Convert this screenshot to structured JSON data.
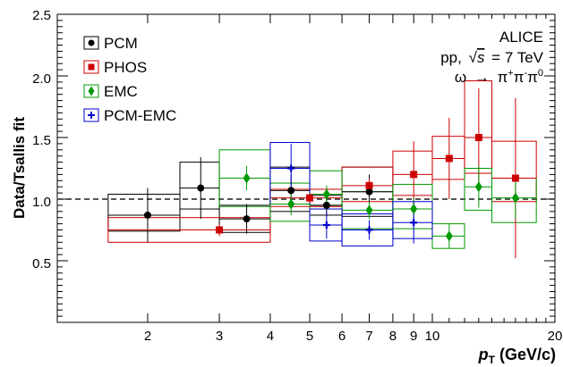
{
  "chart_data": {
    "type": "scatter",
    "xlabel": "p_T (GeV/c)",
    "xlabel_main": "p",
    "xlabel_sub": "T",
    "xlabel_unit": "(GeV/c)",
    "ylabel": "Data/Tsallis fit",
    "x_scale": "log",
    "xlim": [
      1.2,
      20
    ],
    "ylim": [
      0.0,
      2.5
    ],
    "x_tick_labels": [
      "2",
      "3",
      "4",
      "5",
      "6",
      "7",
      "8",
      "9",
      "10",
      "20"
    ],
    "y_tick_labels": [
      "0.5",
      "1.0",
      "1.5",
      "2.0",
      "2.5"
    ],
    "reference_line": 1.0,
    "legend_position": "top-left",
    "annotations": {
      "collab": "ALICE",
      "system_prefix": "pp,",
      "sqrt": "√",
      "s": "s",
      "energy": "= 7 TeV",
      "decay_omega": "ω",
      "decay_arrow": "→",
      "decay_pi": "π",
      "sup_plus": "+",
      "sup_minus": "-",
      "sup_zero": "0"
    },
    "series": [
      {
        "name": "PCM",
        "color": "#000000",
        "marker": "circle",
        "points": [
          {
            "x": 2.0,
            "y": 0.87,
            "xlo": 1.6,
            "xhi": 2.4,
            "elo": 0.22,
            "ehi": 0.22,
            "slo": 0.13,
            "shi": 0.17
          },
          {
            "x": 2.7,
            "y": 1.09,
            "xlo": 2.4,
            "xhi": 3.0,
            "elo": 0.25,
            "ehi": 0.25,
            "slo": 0.17,
            "shi": 0.21
          },
          {
            "x": 3.5,
            "y": 0.84,
            "xlo": 3.0,
            "xhi": 4.0,
            "elo": 0.12,
            "ehi": 0.12,
            "slo": 0.11,
            "shi": 0.11
          },
          {
            "x": 4.5,
            "y": 1.07,
            "xlo": 4.0,
            "xhi": 5.0,
            "elo": 0.13,
            "ehi": 0.13,
            "slo": 0.17,
            "shi": 0.19
          },
          {
            "x": 5.5,
            "y": 0.95,
            "xlo": 5.0,
            "xhi": 6.0,
            "elo": 0.09,
            "ehi": 0.09,
            "slo": 0.08,
            "shi": 0.08
          },
          {
            "x": 7.0,
            "y": 1.06,
            "xlo": 6.0,
            "xhi": 8.0,
            "elo": 0.14,
            "ehi": 0.14,
            "slo": 0.2,
            "shi": 0.2
          }
        ]
      },
      {
        "name": "PHOS",
        "color": "#cc0000",
        "marker": "square",
        "points": [
          {
            "x": 3.0,
            "y": 0.75,
            "xlo": 1.6,
            "xhi": 4.0,
            "elo": 0.05,
            "ehi": 0.05,
            "slo": 0.1,
            "shi": 0.1
          },
          {
            "x": 5.0,
            "y": 1.01,
            "xlo": 4.0,
            "xhi": 6.0,
            "elo": 0.04,
            "ehi": 0.04,
            "slo": 0.07,
            "shi": 0.07
          },
          {
            "x": 7.0,
            "y": 1.11,
            "xlo": 6.0,
            "xhi": 8.0,
            "elo": 0.06,
            "ehi": 0.06,
            "slo": 0.13,
            "shi": 0.15
          },
          {
            "x": 9.0,
            "y": 1.2,
            "xlo": 8.0,
            "xhi": 10.0,
            "elo": 0.27,
            "ehi": 0.27,
            "slo": 0.17,
            "shi": 0.19
          },
          {
            "x": 11.0,
            "y": 1.33,
            "xlo": 10.0,
            "xhi": 12.0,
            "elo": 0.33,
            "ehi": 0.33,
            "slo": 0.17,
            "shi": 0.18
          },
          {
            "x": 13.0,
            "y": 1.5,
            "xlo": 12.0,
            "xhi": 14.0,
            "elo": 0.4,
            "ehi": 0.4,
            "slo": 0.29,
            "shi": 0.46
          },
          {
            "x": 16.0,
            "y": 1.17,
            "xlo": 14.0,
            "xhi": 18.0,
            "elo": 0.65,
            "ehi": 0.65,
            "slo": 0.19,
            "shi": 0.3
          }
        ]
      },
      {
        "name": "EMC",
        "color": "#009900",
        "marker": "diamond",
        "points": [
          {
            "x": 3.5,
            "y": 1.17,
            "xlo": 3.0,
            "xhi": 4.0,
            "elo": 0.1,
            "ehi": 0.1,
            "slo": 0.23,
            "shi": 0.23
          },
          {
            "x": 4.5,
            "y": 0.96,
            "xlo": 4.0,
            "xhi": 5.0,
            "elo": 0.09,
            "ehi": 0.09,
            "slo": 0.14,
            "shi": 0.17
          },
          {
            "x": 5.5,
            "y": 1.04,
            "xlo": 5.0,
            "xhi": 6.0,
            "elo": 0.07,
            "ehi": 0.07,
            "slo": 0.09,
            "shi": 0.19
          },
          {
            "x": 7.0,
            "y": 0.91,
            "xlo": 6.0,
            "xhi": 8.0,
            "elo": 0.07,
            "ehi": 0.07,
            "slo": 0.15,
            "shi": 0.15
          },
          {
            "x": 9.0,
            "y": 0.92,
            "xlo": 8.0,
            "xhi": 10.0,
            "elo": 0.09,
            "ehi": 0.09,
            "slo": 0.16,
            "shi": 0.2
          },
          {
            "x": 11.0,
            "y": 0.7,
            "xlo": 10.0,
            "xhi": 12.0,
            "elo": 0.1,
            "ehi": 0.1,
            "slo": 0.1,
            "shi": 0.1
          },
          {
            "x": 13.0,
            "y": 1.1,
            "xlo": 12.0,
            "xhi": 14.0,
            "elo": 0.17,
            "ehi": 0.17,
            "slo": 0.19,
            "shi": 0.15
          },
          {
            "x": 16.0,
            "y": 1.01,
            "xlo": 14.0,
            "xhi": 18.0,
            "elo": 0.17,
            "ehi": 0.17,
            "slo": 0.2,
            "shi": 0.16
          }
        ]
      },
      {
        "name": "PCM-EMC",
        "color": "#0000cc",
        "marker": "cross",
        "points": [
          {
            "x": 4.5,
            "y": 1.25,
            "xlo": 4.0,
            "xhi": 5.0,
            "elo": 0.2,
            "ehi": 0.2,
            "slo": 0.29,
            "shi": 0.21
          },
          {
            "x": 5.5,
            "y": 0.79,
            "xlo": 5.0,
            "xhi": 6.0,
            "elo": 0.11,
            "ehi": 0.11,
            "slo": 0.13,
            "shi": 0.13
          },
          {
            "x": 7.0,
            "y": 0.75,
            "xlo": 6.0,
            "xhi": 8.0,
            "elo": 0.08,
            "ehi": 0.08,
            "slo": 0.13,
            "shi": 0.13
          },
          {
            "x": 9.0,
            "y": 0.81,
            "xlo": 8.0,
            "xhi": 10.0,
            "elo": 0.17,
            "ehi": 0.17,
            "slo": 0.13,
            "shi": 0.17
          }
        ]
      }
    ]
  }
}
